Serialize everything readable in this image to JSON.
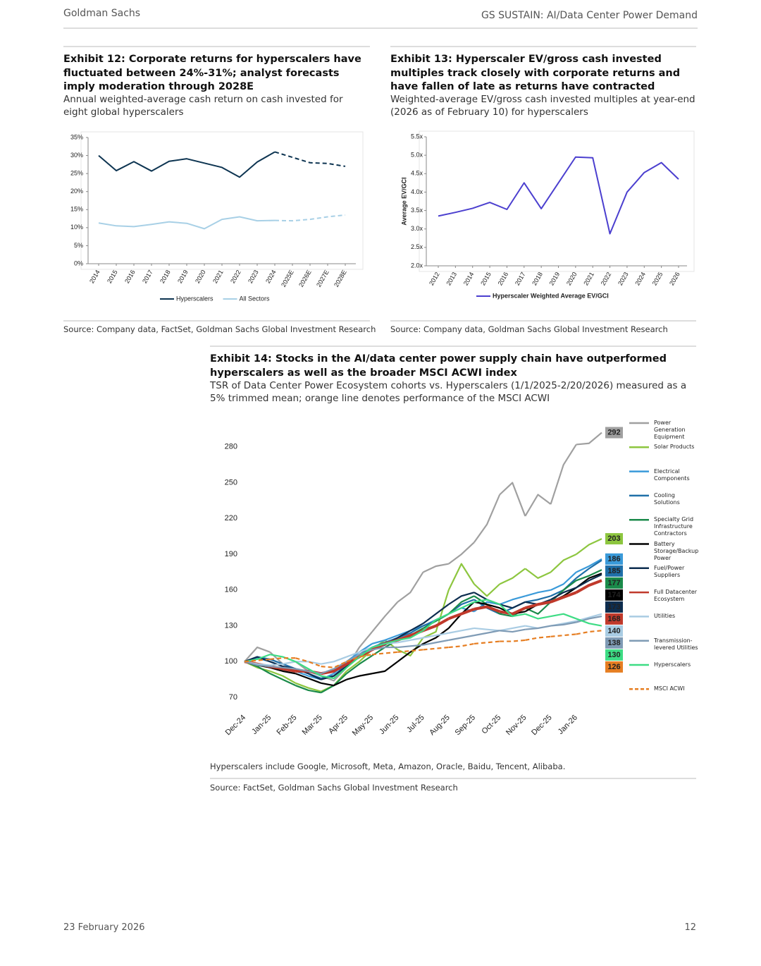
{
  "header": {
    "left": "Goldman Sachs",
    "right": "GS SUSTAIN: AI/Data Center Power Demand"
  },
  "footer": {
    "date": "23 February 2026",
    "page": "12"
  },
  "chart_data": [
    {
      "type": "line",
      "title": "Exhibit 12: Corporate returns for hyperscalers have fluctuated between 24%-31%; analyst forecasts imply moderation through 2028E",
      "subtitle": "Annual weighted-average cash return on cash invested for eight global hyperscalers",
      "source": "Source: Company data, FactSet, Goldman Sachs Global Investment Research",
      "categories": [
        "2014",
        "2015",
        "2016",
        "2017",
        "2018",
        "2019",
        "2020",
        "2021",
        "2022",
        "2023",
        "2024",
        "2025E",
        "2026E",
        "2027E",
        "2028E"
      ],
      "series": [
        {
          "name": "Hyperscalers",
          "color": "#0d3451",
          "values": [
            30,
            25.8,
            28.3,
            25.7,
            28.4,
            29.1,
            27.9,
            26.7,
            24,
            28.2,
            31,
            29.5,
            28,
            27.8,
            27
          ]
        },
        {
          "name": "All Sectors",
          "color": "#a8d0e6",
          "values": [
            11.3,
            10.5,
            10.3,
            10.9,
            11.6,
            11.2,
            9.7,
            12.3,
            13,
            11.9,
            12,
            11.9,
            12.3,
            13,
            13.5
          ]
        }
      ],
      "ylim": [
        0,
        35
      ],
      "yticks": [
        {
          "value": 0,
          "label": "0%"
        },
        {
          "value": 5,
          "label": "5%"
        },
        {
          "value": 10,
          "label": "10%"
        },
        {
          "value": 15,
          "label": "15%"
        },
        {
          "value": 20,
          "label": "20%"
        },
        {
          "value": 25,
          "label": "25%"
        },
        {
          "value": 30,
          "label": "30%"
        },
        {
          "value": 35,
          "label": "35%"
        }
      ],
      "grid": false,
      "legend": "bottom"
    },
    {
      "type": "line",
      "title": "Exhibit 13: Hyperscaler EV/gross cash invested multiples track closely with corporate returns and have fallen of late as returns have contracted",
      "subtitle": "Weighted-average EV/gross cash invested multiples at year-end (2026 as of February 10) for hyperscalers",
      "source": "Source: Company data, Goldman Sachs Global Investment Research",
      "y_label": "Average EV/GCI",
      "categories": [
        "2012",
        "2013",
        "2014",
        "2015",
        "2016",
        "2017",
        "2018",
        "2019",
        "2020",
        "2021",
        "2022",
        "2023",
        "2024",
        "2025",
        "2026"
      ],
      "series": [
        {
          "name": "Hyperscaler Weighted Average EV/GCI",
          "color": "#4b3fcf",
          "values": [
            3.35,
            3.45,
            3.56,
            3.72,
            3.53,
            4.25,
            3.55,
            4.25,
            4.95,
            4.93,
            2.87,
            4,
            4.53,
            4.8,
            4.35
          ]
        }
      ],
      "ylim": [
        2,
        5.5
      ],
      "yticks": [
        {
          "value": 2,
          "label": "2.0x"
        },
        {
          "value": 2.5,
          "label": "2.5x"
        },
        {
          "value": 3,
          "label": "3.0x"
        },
        {
          "value": 3.5,
          "label": "3.5x"
        },
        {
          "value": 4,
          "label": "4.0x"
        },
        {
          "value": 4.5,
          "label": "4.5x"
        },
        {
          "value": 5,
          "label": "5.0x"
        },
        {
          "value": 5.5,
          "label": "5.5x"
        }
      ],
      "grid": false,
      "legend": "bottom"
    },
    {
      "type": "line",
      "title": "Exhibit 14: Stocks in the AI/data center power supply chain have outperformed hyperscalers as well as the broader MSCI ACWI index",
      "subtitle": "TSR of Data Center Power Ecosystem cohorts vs. Hyperscalers (1/1/2025-2/20/2026) measured as a 5% trimmed mean; orange line denotes performance of the MSCI ACWI",
      "note": "Hyperscalers include Google, Microsoft, Meta, Amazon, Oracle, Baidu, Tencent, Alibaba.",
      "source": "Source: FactSet, Goldman Sachs Global Investment Research",
      "categories": [
        "Dec-24",
        null,
        "Jan-25",
        null,
        "Feb-25",
        null,
        "Mar-25",
        null,
        "Apr-25",
        null,
        "May-25",
        null,
        "Jun-25",
        null,
        "Jul-25",
        null,
        "Aug-25",
        null,
        "Sep-25",
        null,
        "Oct-25",
        null,
        "Nov-25",
        null,
        "Dec-25",
        null,
        "Jan-26",
        null,
        null
      ],
      "series": [
        {
          "name": "Power Generation Equipment",
          "color": "#a0a0a0",
          "values": [
            100,
            112,
            108,
            98,
            100,
            92,
            88,
            84,
            95,
            112,
            125,
            138,
            150,
            158,
            175,
            180,
            182,
            190,
            200,
            215,
            240,
            250,
            222,
            240,
            232,
            265,
            282,
            283,
            292
          ]
        },
        {
          "name": "Solar Products",
          "color": "#8dc63f",
          "values": [
            100,
            95,
            92,
            88,
            82,
            78,
            75,
            80,
            92,
            100,
            110,
            118,
            110,
            105,
            120,
            125,
            160,
            182,
            165,
            155,
            165,
            170,
            178,
            170,
            175,
            185,
            190,
            198,
            203
          ]
        },
        {
          "name": "Electrical Components",
          "color": "#3a9ad9",
          "values": [
            100,
            103,
            100,
            96,
            92,
            88,
            85,
            90,
            100,
            108,
            115,
            118,
            122,
            126,
            130,
            135,
            140,
            145,
            142,
            150,
            148,
            152,
            155,
            158,
            160,
            165,
            175,
            180,
            186
          ]
        },
        {
          "name": "Cooling Solutions",
          "color": "#1f6fa8",
          "values": [
            100,
            104,
            102,
            98,
            94,
            90,
            86,
            88,
            98,
            106,
            112,
            116,
            120,
            124,
            130,
            134,
            140,
            148,
            152,
            145,
            140,
            145,
            150,
            152,
            155,
            160,
            170,
            178,
            185
          ]
        },
        {
          "name": "Specialty Grid Infrastructure Contractors",
          "color": "#1a8a4a",
          "values": [
            100,
            96,
            90,
            85,
            80,
            76,
            74,
            80,
            90,
            98,
            105,
            112,
            118,
            122,
            128,
            134,
            140,
            150,
            155,
            148,
            140,
            138,
            145,
            140,
            150,
            160,
            168,
            172,
            177
          ]
        },
        {
          "name": "Battery Storage/Backup Power",
          "color": "#000000",
          "values": [
            100,
            97,
            95,
            92,
            90,
            86,
            82,
            80,
            85,
            88,
            90,
            92,
            100,
            108,
            115,
            120,
            128,
            140,
            150,
            148,
            145,
            140,
            142,
            148,
            150,
            155,
            162,
            170,
            174
          ]
        },
        {
          "name": "Fuel/Power Suppliers",
          "color": "#0d2d4f",
          "values": [
            100,
            104,
            100,
            96,
            94,
            90,
            85,
            88,
            96,
            104,
            110,
            114,
            120,
            126,
            132,
            140,
            148,
            155,
            158,
            152,
            148,
            145,
            150,
            148,
            152,
            158,
            162,
            168,
            173
          ]
        },
        {
          "name": "Full Datacenter Ecosystem",
          "color": "#c0392b",
          "values": [
            100,
            98,
            96,
            94,
            92,
            92,
            90,
            92,
            98,
            104,
            110,
            115,
            118,
            122,
            126,
            130,
            136,
            140,
            144,
            146,
            142,
            140,
            145,
            148,
            150,
            154,
            158,
            164,
            168
          ]
        },
        {
          "name": "Utilities",
          "color": "#a9cce3",
          "values": [
            100,
            98,
            97,
            98,
            100,
            100,
            98,
            100,
            104,
            108,
            112,
            115,
            116,
            118,
            120,
            122,
            124,
            126,
            128,
            127,
            126,
            128,
            130,
            128,
            130,
            132,
            134,
            137,
            140
          ]
        },
        {
          "name": "Transmission-levered Utilities",
          "color": "#7f9bb5",
          "values": [
            100,
            97,
            96,
            95,
            94,
            92,
            90,
            94,
            100,
            106,
            110,
            112,
            112,
            113,
            114,
            116,
            118,
            120,
            122,
            124,
            126,
            125,
            127,
            128,
            130,
            131,
            133,
            136,
            138
          ]
        },
        {
          "name": "Hyperscalers",
          "color": "#3ddc84",
          "values": [
            100,
            102,
            106,
            104,
            100,
            94,
            88,
            86,
            95,
            104,
            112,
            115,
            118,
            120,
            126,
            135,
            140,
            145,
            150,
            152,
            148,
            138,
            140,
            136,
            138,
            140,
            136,
            132,
            130
          ]
        },
        {
          "name": "MSCI ACWI",
          "color": "#e67e22",
          "line_style": "dashed",
          "values": [
            100,
            101,
            102,
            103,
            103,
            100,
            96,
            95,
            100,
            104,
            106,
            107,
            108,
            109,
            110,
            111,
            112,
            113,
            115,
            116,
            117,
            117,
            118,
            120,
            121,
            122,
            123,
            125,
            126
          ]
        }
      ],
      "ylim": [
        60,
        300
      ],
      "yticks": [
        70,
        100,
        130,
        160,
        190,
        220,
        250,
        280
      ],
      "grid": false,
      "legend": "right",
      "end_labels": true
    }
  ]
}
